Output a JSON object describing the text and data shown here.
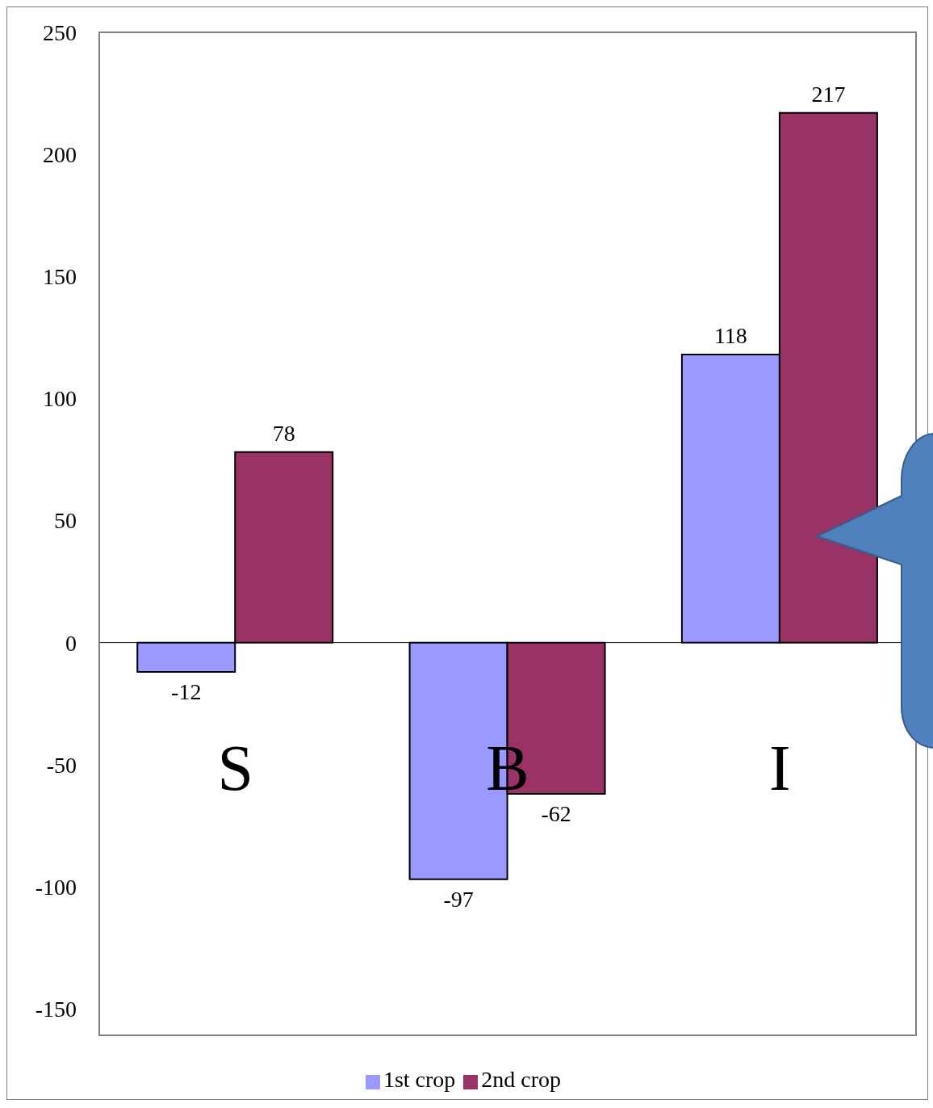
{
  "chart_data": {
    "type": "bar",
    "categories": [
      "S",
      "B",
      "I"
    ],
    "series": [
      {
        "name": "1st crop",
        "color": "#9999ff",
        "values": [
          -12,
          -97,
          118
        ]
      },
      {
        "name": "2nd crop",
        "color": "#993366",
        "values": [
          78,
          -62,
          217
        ]
      }
    ],
    "ylim": [
      -150,
      250
    ],
    "yticks": [
      -150,
      -100,
      -50,
      0,
      50,
      100,
      150,
      200,
      250
    ],
    "grid": false,
    "legend": "bottom",
    "data_labels": true
  }
}
